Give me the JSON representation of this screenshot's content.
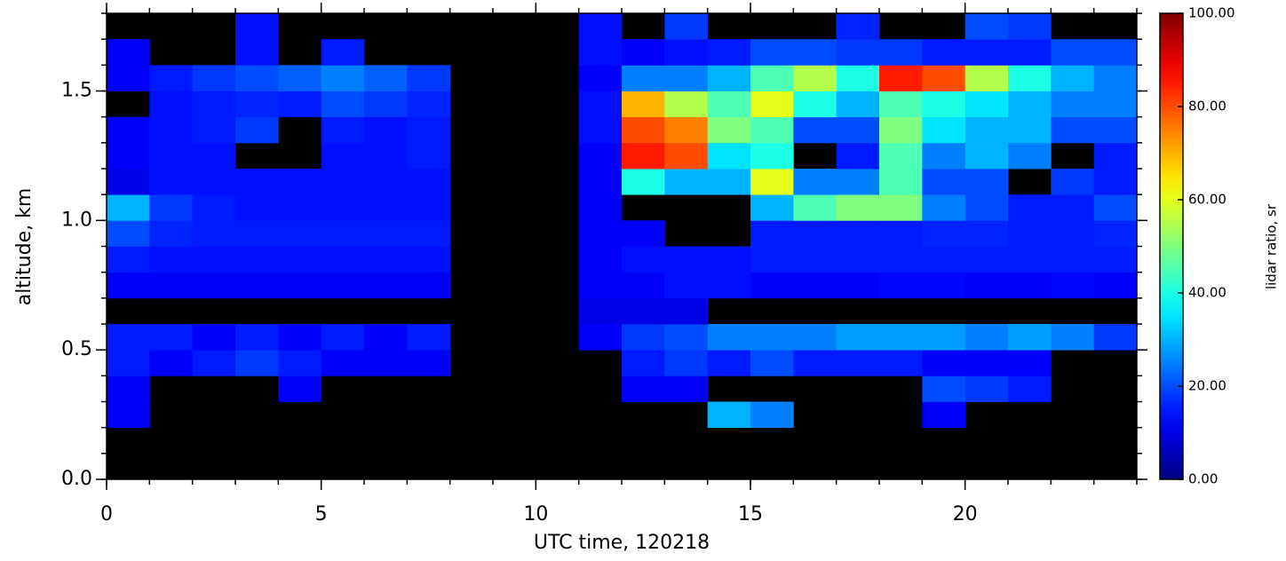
{
  "chart_data": {
    "type": "heatmap",
    "xlabel": "UTC time, 120218",
    "ylabel": "altitude, km",
    "colorbar_label": "lidar ratio, sr",
    "colormap": "jet",
    "missing_color": "#000000",
    "x": [
      0,
      1,
      2,
      3,
      4,
      5,
      6,
      7,
      8,
      9,
      10,
      11,
      12,
      13,
      14,
      15,
      16,
      17,
      18,
      19,
      20,
      21,
      22,
      23,
      24
    ],
    "y": [
      0,
      0.1,
      0.2,
      0.3,
      0.4,
      0.5,
      0.6,
      0.7,
      0.8,
      0.9,
      1.0,
      1.1,
      1.2,
      1.3,
      1.4,
      1.5,
      1.6,
      1.7,
      1.8
    ],
    "z": [
      [
        null,
        null,
        null,
        null,
        null,
        null,
        null,
        null,
        null,
        null,
        null,
        null,
        null,
        null,
        null,
        null,
        null,
        null,
        null,
        null,
        null,
        null,
        null,
        null
      ],
      [
        null,
        null,
        null,
        null,
        null,
        null,
        null,
        null,
        null,
        null,
        null,
        null,
        null,
        null,
        null,
        null,
        null,
        null,
        null,
        null,
        null,
        null,
        null,
        null
      ],
      [
        12,
        null,
        null,
        null,
        null,
        null,
        null,
        null,
        null,
        null,
        null,
        null,
        null,
        null,
        30,
        25,
        null,
        null,
        null,
        12,
        null,
        null,
        null,
        null
      ],
      [
        12,
        null,
        null,
        null,
        12,
        null,
        null,
        null,
        null,
        null,
        null,
        null,
        12,
        12,
        null,
        null,
        null,
        null,
        null,
        20,
        18,
        15,
        null,
        null
      ],
      [
        15,
        12,
        15,
        18,
        15,
        12,
        12,
        12,
        null,
        null,
        null,
        null,
        15,
        18,
        15,
        20,
        15,
        15,
        15,
        12,
        12,
        12,
        null,
        null
      ],
      [
        15,
        15,
        12,
        15,
        12,
        15,
        12,
        15,
        null,
        null,
        null,
        12,
        18,
        20,
        25,
        25,
        25,
        28,
        28,
        28,
        25,
        28,
        25,
        18
      ],
      [
        null,
        null,
        null,
        null,
        null,
        null,
        null,
        null,
        null,
        null,
        null,
        10,
        10,
        10,
        null,
        null,
        null,
        null,
        null,
        null,
        null,
        null,
        null,
        null
      ],
      [
        12,
        12,
        12,
        12,
        12,
        12,
        12,
        12,
        null,
        null,
        null,
        12,
        12,
        14,
        14,
        12,
        12,
        12,
        13,
        13,
        12,
        12,
        13,
        12
      ],
      [
        15,
        14,
        14,
        14,
        14,
        14,
        14,
        14,
        null,
        null,
        null,
        12,
        14,
        14,
        14,
        15,
        15,
        15,
        15,
        15,
        15,
        15,
        15,
        15
      ],
      [
        20,
        16,
        15,
        15,
        15,
        15,
        15,
        15,
        null,
        null,
        null,
        12,
        12,
        null,
        null,
        15,
        15,
        15,
        15,
        16,
        16,
        15,
        15,
        16
      ],
      [
        30,
        18,
        15,
        14,
        14,
        14,
        14,
        14,
        null,
        null,
        null,
        12,
        null,
        null,
        null,
        30,
        45,
        50,
        50,
        25,
        20,
        15,
        15,
        20
      ],
      [
        10,
        14,
        14,
        14,
        14,
        14,
        14,
        14,
        null,
        null,
        null,
        12,
        40,
        30,
        30,
        60,
        25,
        25,
        45,
        20,
        20,
        null,
        18,
        15
      ],
      [
        12,
        14,
        14,
        null,
        null,
        14,
        14,
        15,
        null,
        null,
        null,
        12,
        85,
        80,
        35,
        40,
        null,
        15,
        45,
        25,
        30,
        25,
        null,
        15
      ],
      [
        12,
        14,
        15,
        18,
        null,
        15,
        14,
        15,
        null,
        null,
        null,
        14,
        80,
        75,
        50,
        45,
        20,
        20,
        50,
        35,
        30,
        30,
        20,
        20
      ],
      [
        null,
        14,
        15,
        16,
        15,
        20,
        18,
        16,
        null,
        null,
        null,
        14,
        70,
        55,
        45,
        60,
        40,
        30,
        45,
        40,
        35,
        30,
        25,
        25
      ],
      [
        12,
        15,
        18,
        20,
        22,
        25,
        22,
        18,
        null,
        null,
        null,
        12,
        25,
        25,
        30,
        45,
        55,
        40,
        85,
        80,
        55,
        40,
        30,
        25
      ],
      [
        12,
        null,
        null,
        14,
        null,
        15,
        null,
        null,
        null,
        null,
        null,
        14,
        12,
        14,
        15,
        20,
        20,
        18,
        18,
        15,
        15,
        15,
        20,
        20
      ],
      [
        null,
        null,
        null,
        14,
        null,
        null,
        null,
        null,
        null,
        null,
        null,
        14,
        null,
        18,
        null,
        null,
        null,
        16,
        null,
        null,
        20,
        18,
        null,
        null
      ]
    ],
    "xlim": [
      0,
      24
    ],
    "xticks": [
      0,
      5,
      10,
      15,
      20
    ],
    "ylim": [
      0,
      1.8
    ],
    "yticks": [
      {
        "value": 0,
        "label": "0.0"
      },
      0.5,
      {
        "value": 1,
        "label": "1.0"
      },
      1.5
    ],
    "clim": [
      0,
      100
    ],
    "cticks": [
      {
        "value": 0,
        "label": "0.00"
      },
      {
        "value": 20,
        "label": "20.00"
      },
      {
        "value": 40,
        "label": "40.00"
      },
      {
        "value": 60,
        "label": "60.00"
      },
      {
        "value": 80,
        "label": "80.00"
      },
      {
        "value": 100,
        "label": "100.00"
      }
    ]
  }
}
